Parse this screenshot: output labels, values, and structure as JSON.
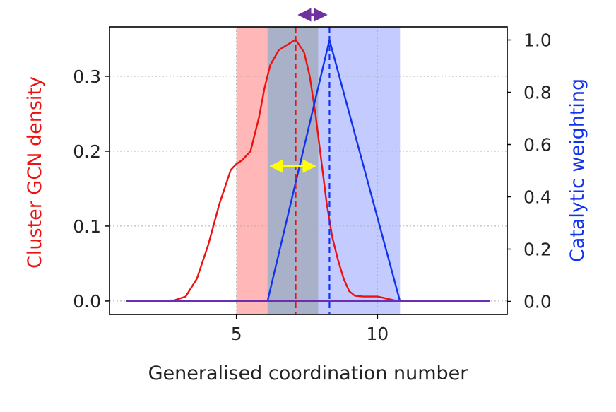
{
  "chart_data": {
    "type": "line",
    "xlabel": "Generalised coordination number",
    "ylabel_left": "Cluster GCN density",
    "ylabel_right": "Catalytic weighting",
    "xlim": [
      0.5,
      14.6
    ],
    "ylim_left": [
      -0.018,
      0.366
    ],
    "ylim_right": [
      -0.05,
      1.05
    ],
    "x_ticks": [
      {
        "value": 5,
        "label": "5"
      },
      {
        "value": 10,
        "label": "10"
      }
    ],
    "y_left_ticks": [
      {
        "value": 0.0,
        "label": "0.0"
      },
      {
        "value": 0.1,
        "label": "0.1"
      },
      {
        "value": 0.2,
        "label": "0.2"
      },
      {
        "value": 0.3,
        "label": "0.3"
      }
    ],
    "y_right_ticks": [
      {
        "value": 0.0,
        "label": "0.0"
      },
      {
        "value": 0.2,
        "label": "0.2"
      },
      {
        "value": 0.4,
        "label": "0.4"
      },
      {
        "value": 0.6,
        "label": "0.6"
      },
      {
        "value": 0.8,
        "label": "0.8"
      },
      {
        "value": 1.0,
        "label": "1.0"
      }
    ],
    "grid": true,
    "colors": {
      "density": "#ee1111",
      "weighting": "#1133ee",
      "overlap_arrow": "#ffff00",
      "shift_arrow": "#7030a0",
      "baseline": "#6a2fb0"
    },
    "series": [
      {
        "axis": "left",
        "color": "#ee1111",
        "x": [
          1.1,
          2.0,
          2.8,
          3.2,
          3.6,
          4.0,
          4.4,
          4.8,
          5.0,
          5.2,
          5.5,
          5.8,
          6.0,
          6.2,
          6.5,
          6.8,
          7.1,
          7.4,
          7.6,
          7.8,
          8.0,
          8.2,
          8.4,
          8.6,
          8.8,
          9.0,
          9.2,
          9.5,
          10.0,
          10.6,
          11.0,
          12.0,
          14.0
        ],
        "y": [
          0.0,
          0.0,
          0.001,
          0.006,
          0.03,
          0.075,
          0.13,
          0.175,
          0.183,
          0.188,
          0.2,
          0.245,
          0.285,
          0.315,
          0.335,
          0.342,
          0.349,
          0.332,
          0.3,
          0.25,
          0.19,
          0.13,
          0.085,
          0.055,
          0.03,
          0.013,
          0.007,
          0.006,
          0.006,
          0.001,
          0.0,
          0.0,
          0.0
        ]
      },
      {
        "axis": "right",
        "color": "#1133ee",
        "x": [
          1.1,
          6.1,
          8.3,
          10.8,
          14.0
        ],
        "y": [
          0.0,
          0.0,
          1.0,
          0.0,
          0.0
        ]
      }
    ],
    "shaded_regions": [
      {
        "x_start": 5.0,
        "x_end": 6.1,
        "color": "#ff9999"
      },
      {
        "x_start": 6.1,
        "x_end": 7.9,
        "color": "#8590b0"
      },
      {
        "x_start": 7.9,
        "x_end": 10.8,
        "color": "#aab5ff"
      }
    ],
    "vertical_lines": [
      {
        "x": 7.1,
        "color": "#ee1111",
        "style": "dashed"
      },
      {
        "x": 8.3,
        "color": "#1133ee",
        "style": "dashed"
      }
    ],
    "arrows": [
      {
        "name": "overlap",
        "x_start": 6.1,
        "x_end": 7.9,
        "y_left": 0.18,
        "color": "#ffff00"
      },
      {
        "name": "peak-shift",
        "x_start": 7.1,
        "x_end": 8.3,
        "above_plot": true,
        "color": "#7030a0"
      }
    ]
  }
}
